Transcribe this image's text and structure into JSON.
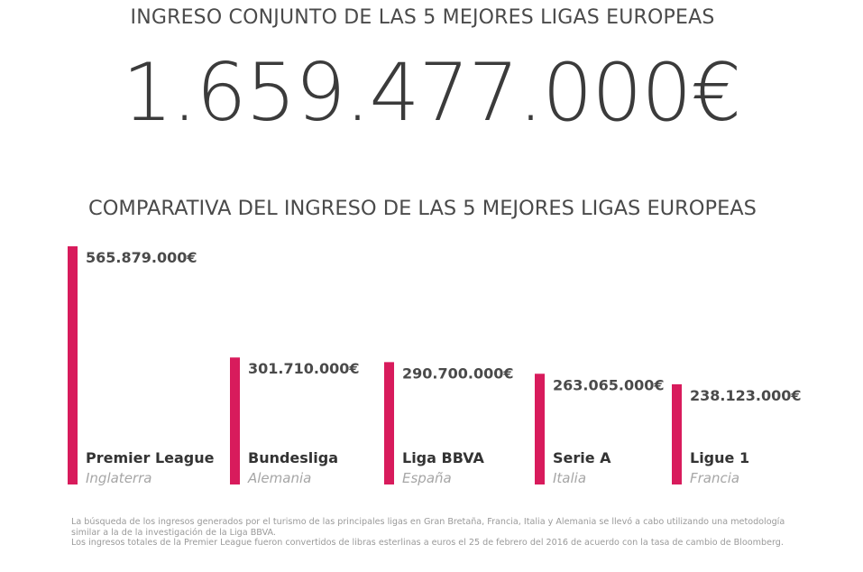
{
  "header": {
    "title": "INGRESO CONJUNTO DE LAS 5 MEJORES LIGAS EUROPEAS",
    "total": "1.659.477.000€"
  },
  "chart_data": {
    "type": "bar",
    "title": "COMPARATIVA DEL INGRESO DE LAS 5 MEJORES LIGAS EUROPEAS",
    "categories": [
      "Premier League",
      "Bundesliga",
      "Liga BBVA",
      "Serie A",
      "Ligue 1"
    ],
    "subcategories": [
      "Inglaterra",
      "Alemania",
      "España",
      "Italia",
      "Francia"
    ],
    "values": [
      565879000,
      301710000,
      290700000,
      263065000,
      238123000
    ],
    "value_labels": [
      "565.879.000€",
      "301.710.000€",
      "290.700.000€",
      "263.065.000€",
      "238.123.000€"
    ],
    "ylim": [
      0,
      565879000
    ],
    "xlabel": "",
    "ylabel": "",
    "grid": false,
    "bar_color": "#d81b5c"
  },
  "footnote": {
    "line1": "La búsqueda de los ingresos generados por el turismo de las principales ligas en Gran Bretaña, Francia, Italia y Alemania se llevó a cabo utilizando una metodología similar a la de la investigación de la Liga BBVA.",
    "line2": "Los ingresos totales de la Premier League fueron convertidos de libras esterlinas a euros el 25 de febrero del 2016 de acuerdo con la tasa de cambio de Bloomberg."
  }
}
